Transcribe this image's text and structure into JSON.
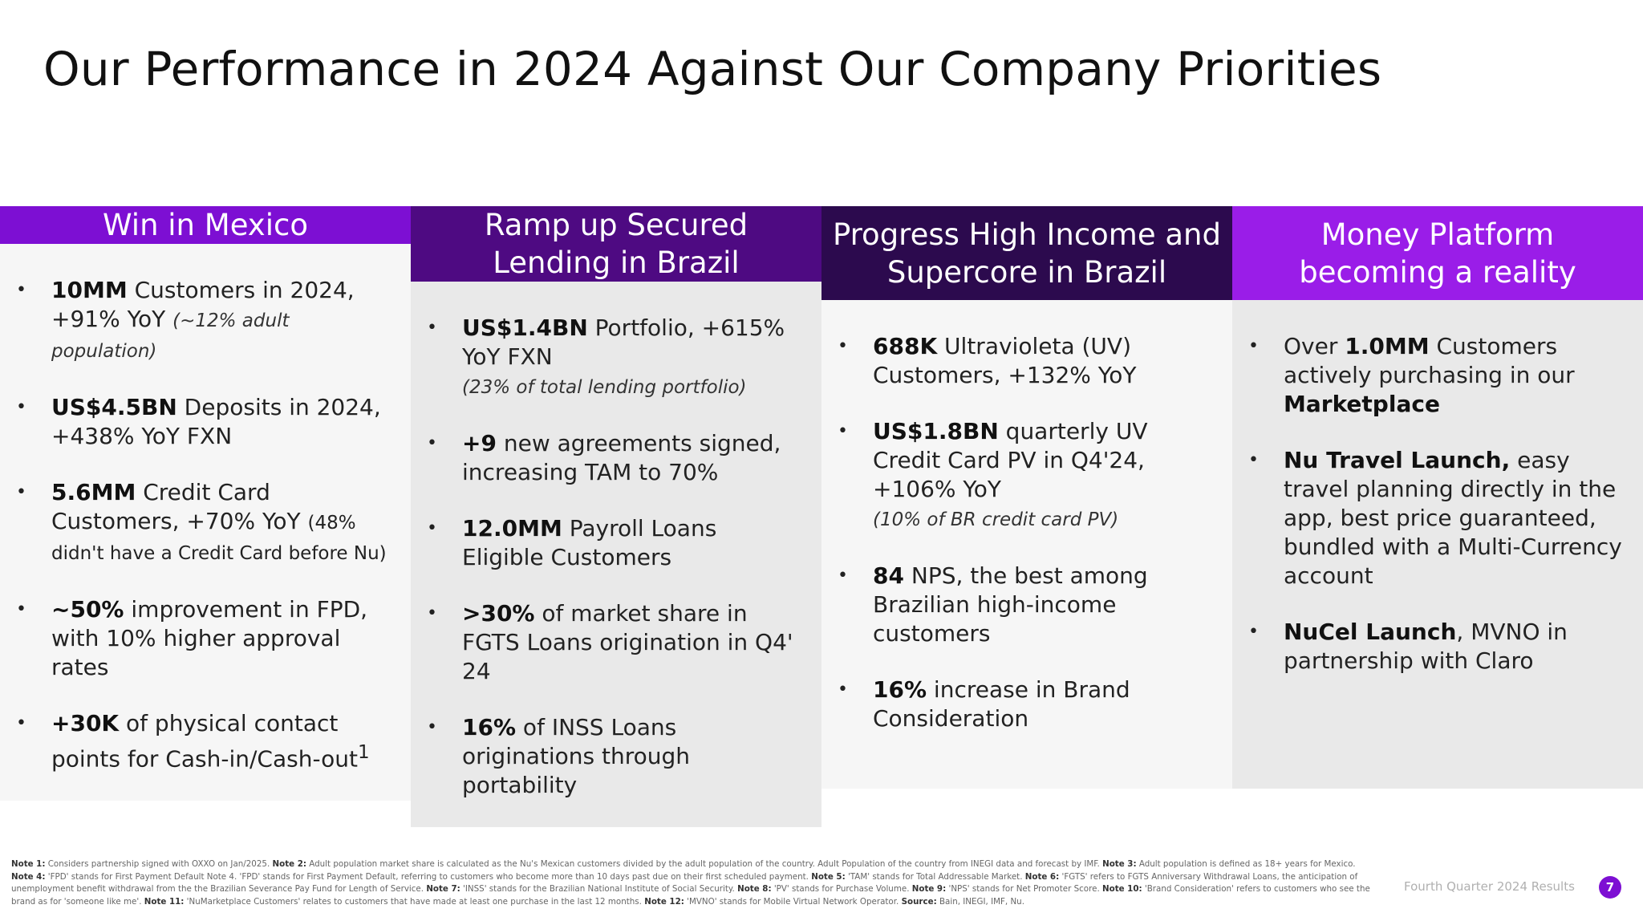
{
  "title": "Our Performance in 2024 Against Our Company Priorities",
  "colors": {
    "col1_header": "#7d0fd3",
    "col2_header": "#4e0a82",
    "col3_header": "#2c0a4e",
    "col4_header": "#9a1de8",
    "col1_body": "#f6f6f6",
    "col2_body": "#e9e9e9",
    "col3_body": "#f6f6f6",
    "col4_body": "#e9e9e9",
    "page_badge": "#7d0fd3"
  },
  "columns": [
    {
      "header": "Win in Mexico",
      "bullets": [
        {
          "bold": "10MM",
          "text": " Customers in 2024, +91% YoY ",
          "note": "(~12% adult population)"
        },
        {
          "bold": "US$4.5BN",
          "text": " Deposits in 2024, +438% YoY FXN"
        },
        {
          "bold": "5.6MM",
          "text": " Credit Card Customers, +70% YoY ",
          "small": "(48% didn't have a Credit Card before Nu)"
        },
        {
          "bold": "~50%",
          "text": " improvement in FPD, with 10% higher approval rates"
        },
        {
          "bold": "+30K",
          "text": " of physical contact points for Cash-in/Cash-out",
          "sup": "1"
        }
      ]
    },
    {
      "header": "Ramp up Secured Lending in Brazil",
      "bullets": [
        {
          "bold": "US$1.4BN",
          "text": " Portfolio, +615% YoY FXN",
          "note": "(23% of total lending portfolio)"
        },
        {
          "bold": "+9",
          "text": " new agreements signed, increasing TAM to 70%"
        },
        {
          "bold": "12.0MM",
          "text": " Payroll Loans Eligible Customers"
        },
        {
          "bold": ">30%",
          "text": " of market share in FGTS Loans origination in Q4' 24"
        },
        {
          "bold": "16%",
          "text": " of INSS Loans originations through portability"
        }
      ]
    },
    {
      "header": "Progress High Income and Supercore in Brazil",
      "bullets": [
        {
          "bold": "688K",
          "text": " Ultravioleta (UV) Customers, +132% YoY"
        },
        {
          "bold": "US$1.8BN",
          "text": " quarterly UV Credit Card PV in Q4'24, +106% YoY",
          "note": "(10% of BR credit card PV)"
        },
        {
          "bold": "84",
          "text": " NPS, the best among Brazilian high-income customers"
        },
        {
          "bold": "16%",
          "text": " increase in Brand Consideration"
        }
      ]
    },
    {
      "header": "Money Platform becoming a reality",
      "bullets": [
        {
          "pre": "Over ",
          "bold": "1.0MM",
          "text": " Customers actively purchasing in our ",
          "bold2": "Marketplace"
        },
        {
          "bold": "Nu Travel Launch,",
          "text": " easy travel planning directly in the app, best price guaranteed, bundled with a Multi-Currency account"
        },
        {
          "bold": "NuCel Launch",
          "text": ", MVNO in partnership with Claro"
        }
      ]
    }
  ],
  "footnotes": [
    {
      "label": "Note 1:",
      "text": " Considers partnership signed with OXXO on Jan/2025. "
    },
    {
      "label": "Note 2:",
      "text": " Adult population market share is calculated as the Nu's Mexican customers divided by the adult population of the country. Adult Population of the country from INEGI data and forecast by IMF. "
    },
    {
      "label": "Note 3:",
      "text": " Adult population is defined as 18+ years for Mexico. "
    },
    {
      "label": "Note 4:",
      "text": " 'FPD' stands for First Payment Default Note 4. 'FPD' stands for First Payment Default, referring to customers who become more than 10 days past due on their first scheduled payment. "
    },
    {
      "label": "Note 5:",
      "text": " 'TAM' stands for Total Addressable Market. "
    },
    {
      "label": "Note 6:",
      "text": " 'FGTS' refers to FGTS Anniversary Withdrawal Loans, the anticipation of unemployment benefit withdrawal from the the Brazilian Severance Pay Fund for Length of Service. "
    },
    {
      "label": "Note 7:",
      "text": " 'INSS' stands for the Brazilian National Institute of Social Security. "
    },
    {
      "label": "Note 8:",
      "text": " 'PV' stands for Purchase Volume. "
    },
    {
      "label": "Note 9:",
      "text": " 'NPS' stands for Net Promoter Score. "
    },
    {
      "label": "Note 10:",
      "text": " 'Brand Consideration' refers to customers who see the brand as for 'someone like me'. "
    },
    {
      "label": "Note 11:",
      "text": " 'NuMarketplace Customers' relates to customers that have made at least one purchase in the last 12 months. "
    },
    {
      "label": "Note 12:",
      "text": " 'MVNO' stands for Mobile Virtual Network Operator. "
    },
    {
      "label": "Source:",
      "text": " Bain, INEGI, IMF, Nu."
    }
  ],
  "footer": {
    "label": "Fourth Quarter 2024 Results",
    "page": "7"
  }
}
